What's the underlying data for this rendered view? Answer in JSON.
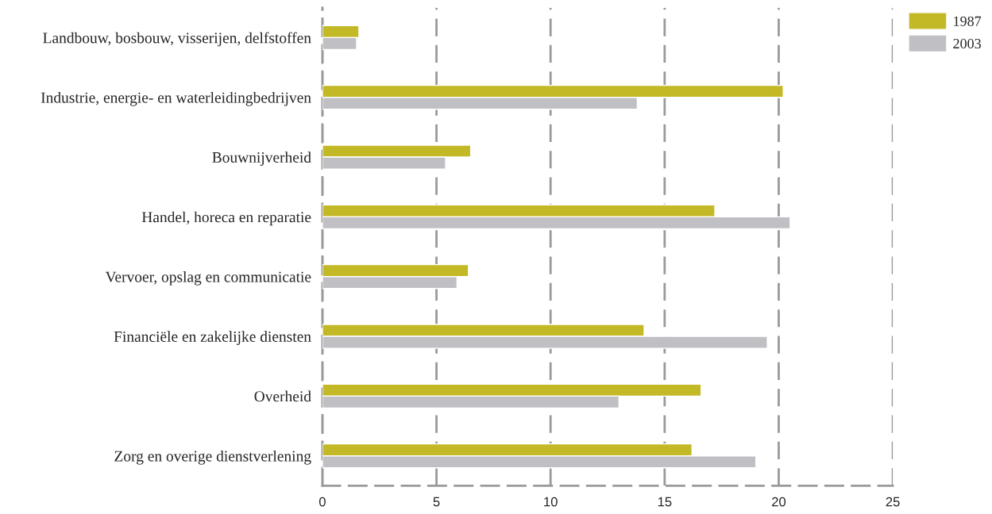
{
  "chart_data": {
    "type": "bar",
    "orientation": "horizontal",
    "categories": [
      "Landbouw, bosbouw, visserijen, delfstoffen",
      "Industrie, energie- en waterleidingbedrijven",
      "Bouwnijverheid",
      "Handel, horeca en reparatie",
      "Vervoer, opslag en communicatie",
      "Financiële en zakelijke diensten",
      "Overheid",
      "Zorg en overige dienstverlening"
    ],
    "series": [
      {
        "name": "1987",
        "color": "#c3b926",
        "values": [
          1.6,
          20.2,
          6.5,
          17.2,
          6.4,
          14.1,
          16.6,
          16.2
        ]
      },
      {
        "name": "2003",
        "color": "#c0bfc4",
        "values": [
          1.5,
          13.8,
          5.4,
          20.5,
          5.9,
          19.5,
          13.0,
          19.0
        ]
      }
    ],
    "xlim": [
      0,
      25
    ],
    "xticks": [
      0,
      5,
      10,
      15,
      20,
      25
    ],
    "grid": "x",
    "legend": "top right"
  }
}
